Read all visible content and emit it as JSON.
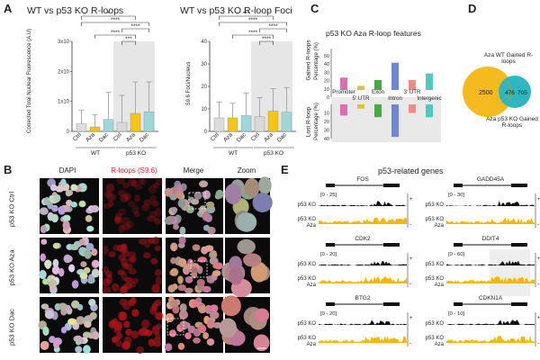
{
  "colors": {
    "ctrl": "#d9d9d9",
    "aza": "#f5c518",
    "dac": "#9fd7d9",
    "wt_ctrl": "#dcdcdc",
    "shade": "#e6e6e6",
    "promoter": "#d96fb0",
    "utr5": "#d7c14a",
    "exon": "#4aa84a",
    "intron": "#6f86d6",
    "utr3": "#f08c86",
    "intergenic": "#4fc9c0",
    "venn_wt": "#f4ba1e",
    "venn_ko": "#2fb6c0",
    "track": "#f5b800",
    "rloop_red": "#d8262b"
  },
  "panelA": {
    "letter": "A",
    "chart1": {
      "title": "WT vs p53 KO R-loops",
      "ylabel": "Corrected Total Nuclear Fluorescence (A.U)",
      "yticks": [
        "0",
        "1x10",
        "2x10",
        "3x10"
      ],
      "categories": [
        "Ctrl",
        "Aza",
        "Dac",
        "Ctrl",
        "Aza",
        "Dac"
      ],
      "group_labels": [
        "WT",
        "p53 KO"
      ],
      "sig": [
        "*",
        "****",
        "****",
        "****",
        "***"
      ]
    },
    "chart2": {
      "title": "WT vs p53 KO R-loop Foci",
      "ylabel": "S9.6 Foci/Nucleus",
      "yticks": [
        "0",
        "10",
        "20",
        "30",
        "40"
      ],
      "categories": [
        "Ctrl",
        "Aza",
        "Dac",
        "Ctrl",
        "Aza",
        "Dac"
      ],
      "group_labels": [
        "WT",
        "p53 KO"
      ],
      "sig": [
        "***",
        "****",
        "****",
        "****",
        "****"
      ]
    }
  },
  "chart_data": [
    {
      "type": "bar",
      "title": "WT vs p53 KO R-loops",
      "categories": [
        "WT Ctrl",
        "WT Aza",
        "WT Dac",
        "p53 KO Ctrl",
        "p53 KO Aza",
        "p53 KO Dac"
      ],
      "values": [
        0.25,
        0.15,
        0.4,
        0.3,
        0.6,
        0.65
      ],
      "errors": [
        0.45,
        0.4,
        0.9,
        0.9,
        1.05,
        1.0
      ],
      "ylabel": "Corrected Total Nuclear Fluorescence (A.U)",
      "ylim": [
        0,
        3
      ]
    },
    {
      "type": "bar",
      "title": "WT vs p53 KO R-loop Foci",
      "categories": [
        "WT Ctrl",
        "WT Aza",
        "WT Dac",
        "p53 KO Ctrl",
        "p53 KO Aza",
        "p53 KO Dac"
      ],
      "values": [
        6,
        6,
        7,
        6.5,
        9,
        8.5
      ],
      "errors": [
        7,
        6.5,
        10,
        8.5,
        10,
        11
      ],
      "ylabel": "S9.6 Foci/Nucleus",
      "ylim": [
        0,
        40
      ]
    },
    {
      "type": "bar",
      "title": "p53 KO Aza R-loop features",
      "categories": [
        "Promoter",
        "5' UTR",
        "Exon",
        "Intron",
        "3' UTR",
        "Intergenic"
      ],
      "series": [
        {
          "name": "Gained R-loops",
          "values": [
            15,
            5,
            12,
            33,
            12,
            20
          ]
        },
        {
          "name": "Lost R-loops",
          "values": [
            -13,
            -5,
            -15,
            -38,
            -10,
            -15
          ]
        }
      ],
      "ylabel": "Percentage (%)",
      "ylim": [
        -40,
        50
      ]
    }
  ],
  "panelB": {
    "letter": "B",
    "columns": [
      "DAPI",
      "R-loops (S9.6)",
      "Merge",
      "Zoom"
    ],
    "rows": [
      "p53 KO Ctrl",
      "p53 KO Aza",
      "p53 KO Dac"
    ]
  },
  "panelC": {
    "letter": "C",
    "title": "p53 KO Aza R-loop features",
    "gained_label": "Gained R-loops",
    "lost_label": "Lost R-loop",
    "ylabel": "Percentage (%)",
    "yticks_top": [
      "50",
      "40",
      "30",
      "20",
      "10",
      "0"
    ],
    "yticks_bottom": [
      "10",
      "20",
      "30",
      "40"
    ],
    "labels_row1": [
      "Promoter",
      "Exon",
      "3' UTR"
    ],
    "labels_row2": [
      "5' UTR",
      "Intron",
      "Intergenic"
    ]
  },
  "panelD": {
    "letter": "D",
    "top_label": "Aza WT Gained R-loops",
    "bottom_label": "Aza p53 KO Gained R-loops",
    "left_value": "2500",
    "overlap_value": "476",
    "right_value": "705"
  },
  "panelE": {
    "letter": "E",
    "title": "p53-related genes",
    "genes": [
      {
        "name": "FOS",
        "range": "[0 - 25]"
      },
      {
        "name": "GADD45A",
        "range": "[0 - 30]"
      },
      {
        "name": "CDK2",
        "range": "[0 - 20]"
      },
      {
        "name": "DDIT4",
        "range": "[0 - 60]"
      },
      {
        "name": "BTG2",
        "range": "[0 - 20]"
      },
      {
        "name": "CDKN1A",
        "range": "[0 - 10]"
      }
    ],
    "track1": "p53 KO",
    "track2a": "p53 KO",
    "track2b": "Aza",
    "plus": "+",
    "minus": "-"
  }
}
